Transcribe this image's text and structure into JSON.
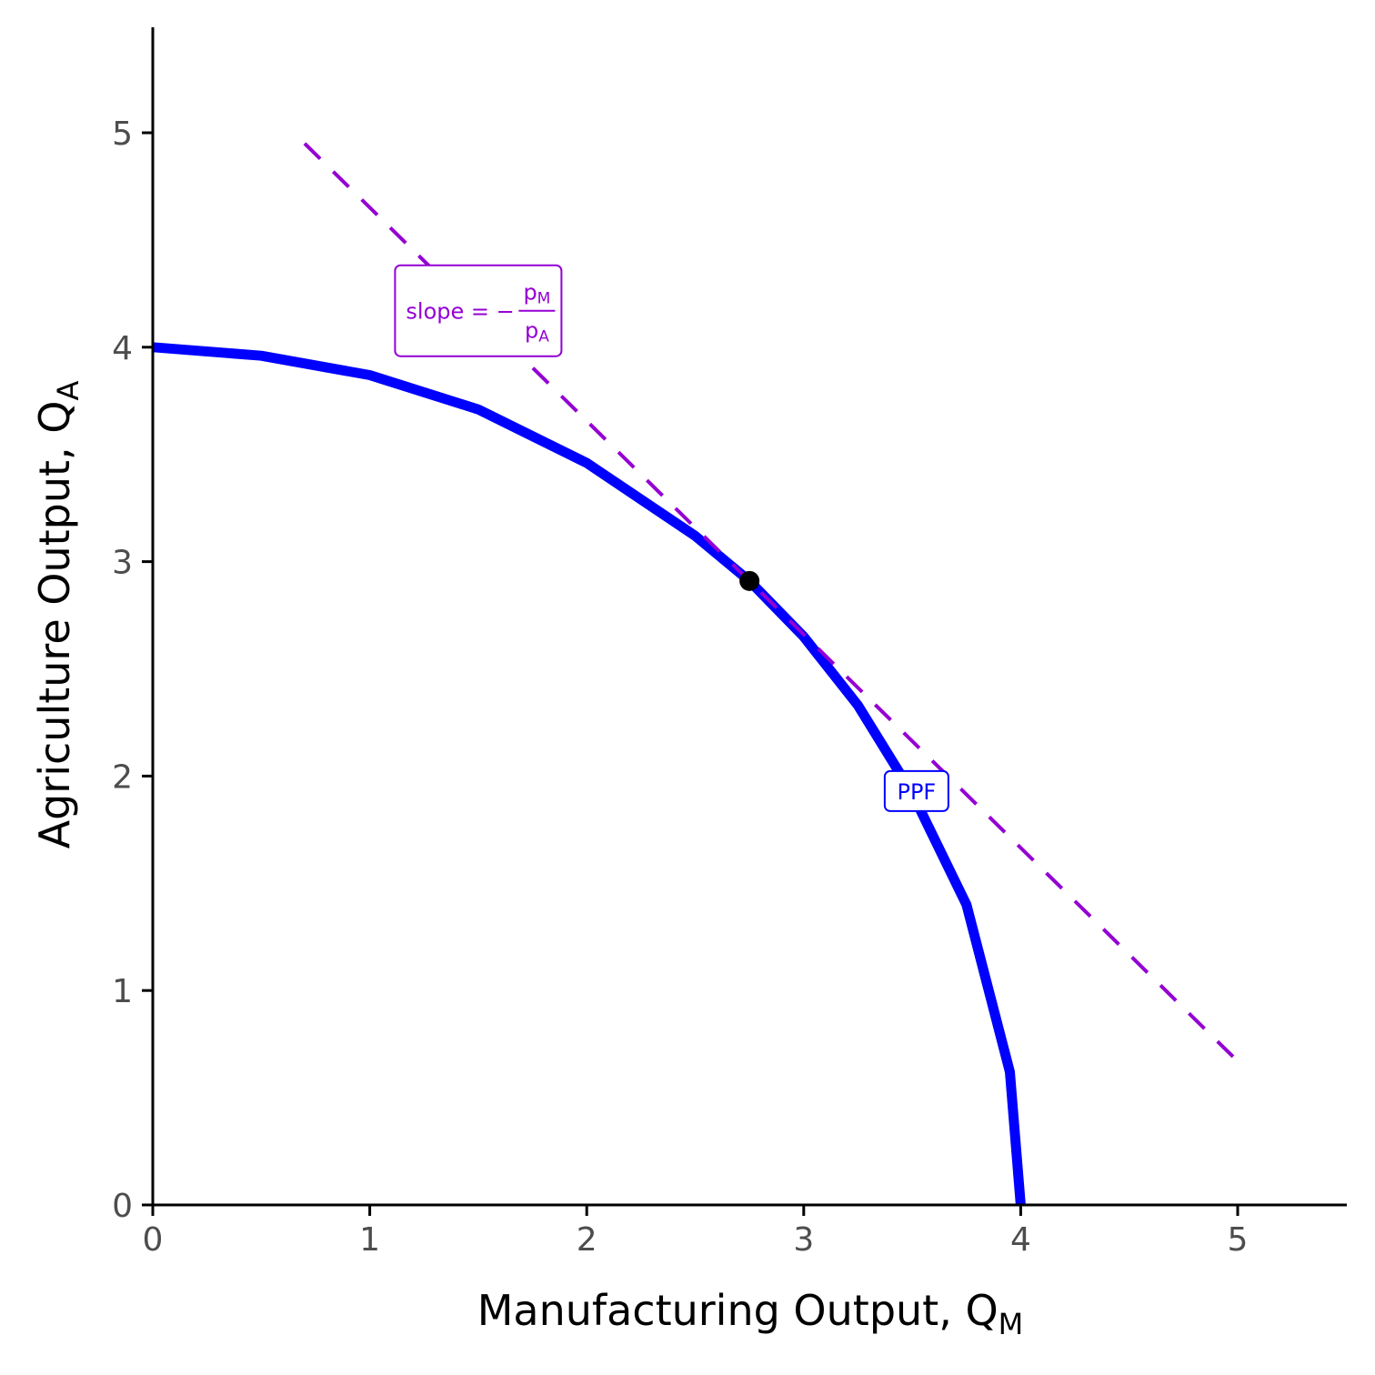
{
  "colors": {
    "ppf": "#0000FF",
    "price_line": "#9400D3",
    "point": "#000000",
    "axis": "#000000",
    "tick_text": "#4D4D4D",
    "background": "#FFFFFF"
  },
  "chart_data": {
    "type": "line",
    "xlabel": "Manufacturing Output, Q",
    "xlabel_sub": "M",
    "ylabel": "Agriculture Output, Q",
    "ylabel_sub": "A",
    "xlim": [
      0,
      5.5
    ],
    "ylim": [
      0,
      5.5
    ],
    "x_ticks": [
      "0",
      "1",
      "2",
      "3",
      "4",
      "5"
    ],
    "y_ticks": [
      "0",
      "1",
      "2",
      "3",
      "4",
      "5"
    ],
    "grid": false,
    "series": [
      {
        "name": "PPF",
        "style": "solid",
        "x": [
          0,
          0.5,
          1.0,
          1.5,
          2.0,
          2.5,
          2.75,
          3.0,
          3.25,
          3.5,
          3.75,
          3.95,
          4.0
        ],
        "y": [
          4.0,
          3.96,
          3.87,
          3.71,
          3.46,
          3.12,
          2.91,
          2.65,
          2.33,
          1.92,
          1.4,
          0.62,
          0.0
        ]
      },
      {
        "name": "slope",
        "style": "dashed",
        "x": [
          0.7,
          5.0
        ],
        "y": [
          4.95,
          0.67
        ]
      }
    ],
    "point": {
      "x": 2.75,
      "y": 2.91
    },
    "annotations": [
      {
        "id": "ppf-label",
        "text": "PPF",
        "x": 3.52,
        "y": 1.93,
        "color_key": "ppf"
      },
      {
        "id": "slope-label",
        "text": "slope = −",
        "num": "p",
        "num_sub": "M",
        "den": "p",
        "den_sub": "A",
        "x": 1.5,
        "y": 4.17,
        "color_key": "price_line"
      }
    ]
  }
}
